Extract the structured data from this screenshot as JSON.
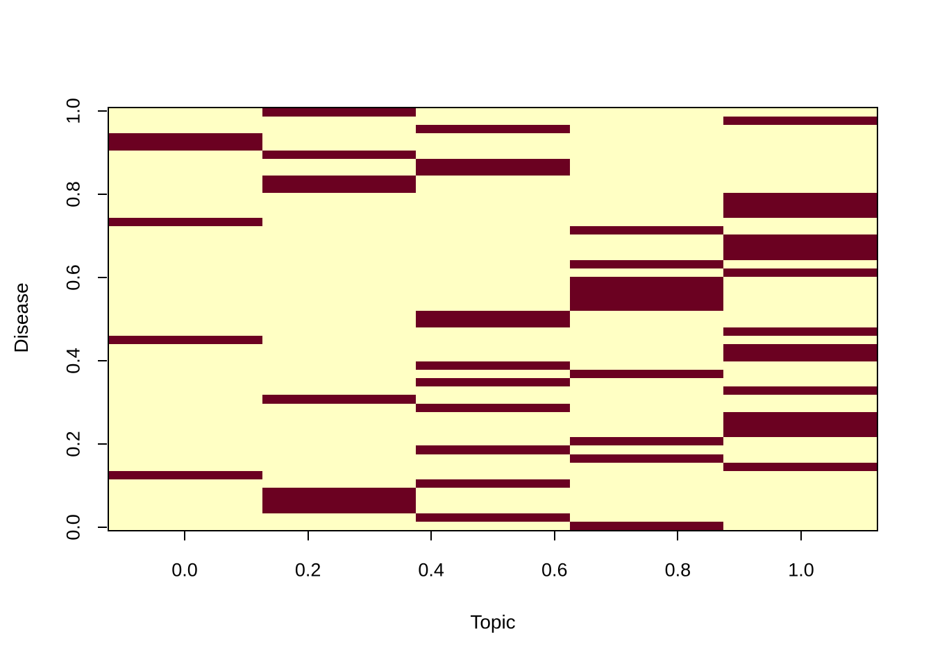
{
  "chart_data": {
    "type": "heatmap",
    "xlabel": "Topic",
    "ylabel": "Disease",
    "x_ticks": [
      "0.0",
      "0.2",
      "0.4",
      "0.6",
      "0.8",
      "1.0"
    ],
    "y_ticks": [
      "0.0",
      "0.2",
      "0.4",
      "0.6",
      "0.8",
      "1.0"
    ],
    "x_tick_values": [
      0.0,
      0.2,
      0.4,
      0.6,
      0.8,
      1.0
    ],
    "y_tick_values": [
      0.0,
      0.2,
      0.4,
      0.6,
      0.8,
      1.0
    ],
    "n_columns_topics": 5,
    "n_rows_diseases": 50,
    "x_range": [
      -0.125,
      1.125
    ],
    "y_range": [
      -0.0102,
      1.0102
    ],
    "topic_column_centers": [
      0.0,
      0.25,
      0.5,
      0.75,
      1.0
    ],
    "values": "binary (each disease row has exactly one dark cell marking its topic)",
    "row_order": "top_to_bottom (top row = Disease 1.0, bottom row = Disease 0.0)",
    "dark_topic_index_by_row": [
      1,
      4,
      2,
      0,
      0,
      1,
      2,
      2,
      1,
      1,
      4,
      4,
      4,
      0,
      3,
      4,
      4,
      4,
      3,
      4,
      3,
      3,
      3,
      3,
      2,
      2,
      4,
      0,
      4,
      4,
      2,
      3,
      2,
      4,
      1,
      2,
      4,
      4,
      4,
      3,
      2,
      3,
      4,
      0,
      2,
      1,
      1,
      1,
      2,
      3
    ],
    "colors": {
      "low": "#FFFFC4",
      "high": "#6B0121",
      "axis": "#000000",
      "background": "#FFFFFF"
    },
    "legend_position": "none",
    "grid": false
  }
}
